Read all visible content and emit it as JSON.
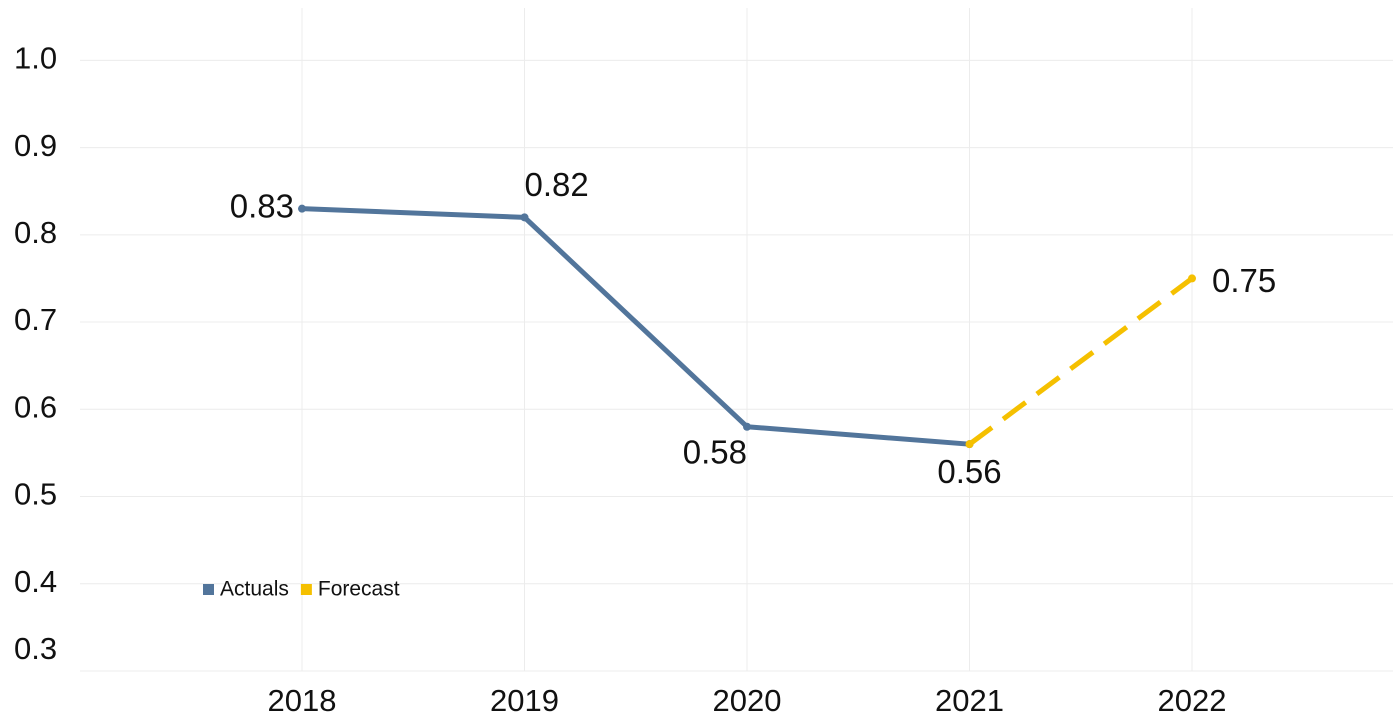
{
  "chart_data": {
    "type": "line",
    "categories": [
      "2018",
      "2019",
      "2020",
      "2021",
      "2022"
    ],
    "series": [
      {
        "name": "Actuals",
        "color": "#52759b",
        "values": [
          0.83,
          0.82,
          0.58,
          0.56,
          null
        ]
      },
      {
        "name": "Forecast",
        "color": "#f5c000",
        "dashed": true,
        "values": [
          null,
          null,
          null,
          0.56,
          0.75
        ]
      }
    ],
    "ylim": [
      0.3,
      1.06
    ],
    "yticks": [
      0.3,
      0.4,
      0.5,
      0.6,
      0.7,
      0.8,
      0.9,
      {
        "value": 1,
        "label": "1.0"
      }
    ],
    "grid": true,
    "legend": "lower left"
  }
}
